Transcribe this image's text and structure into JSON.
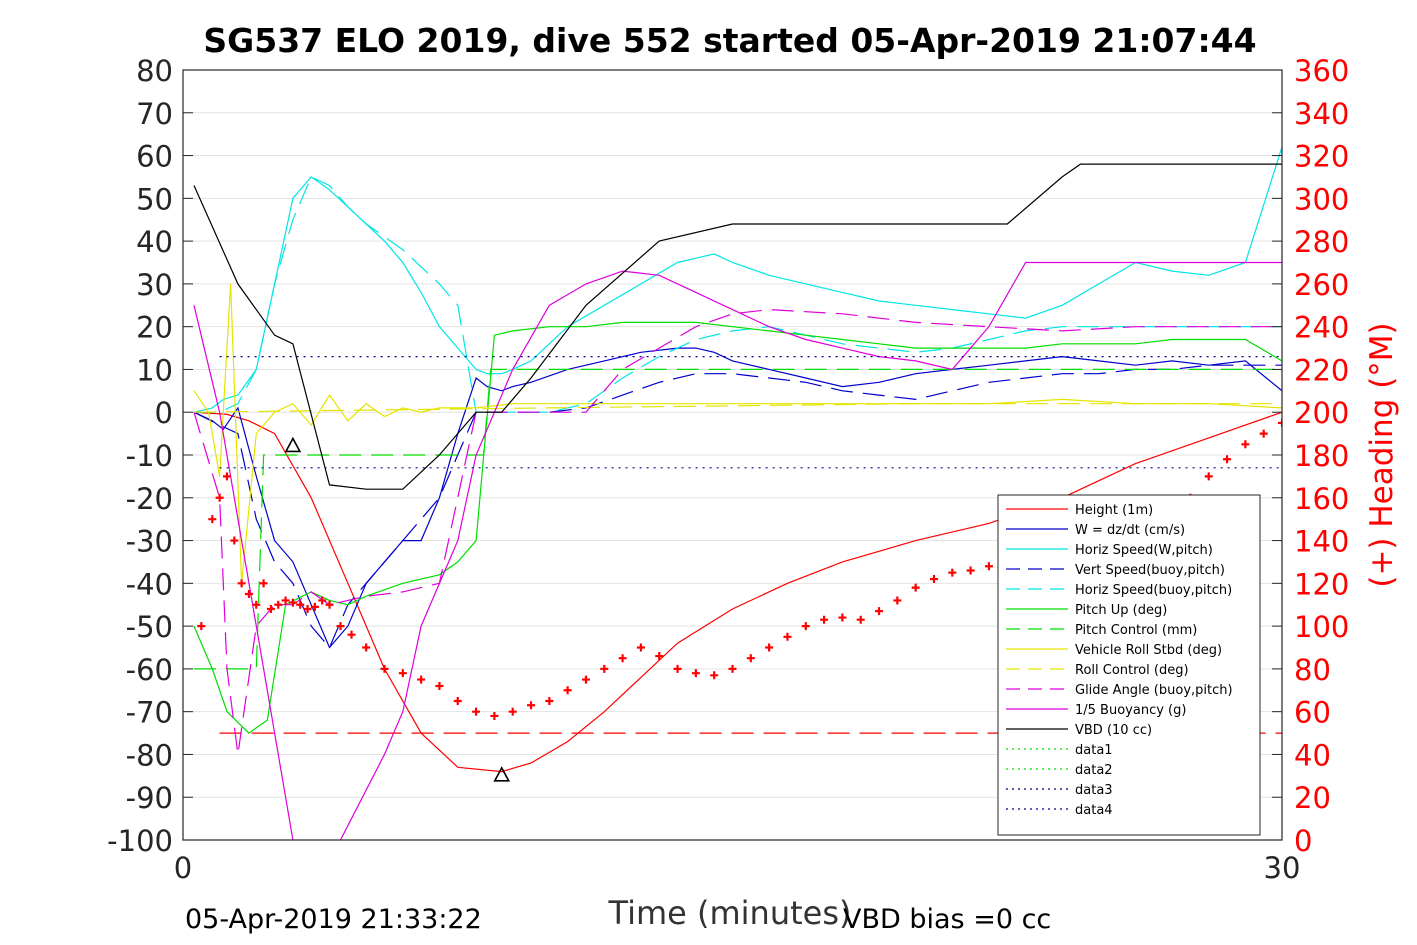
{
  "chart_data": {
    "type": "line",
    "title": "SG537 ELO 2019, dive 552 started 05-Apr-2019 21:07:44",
    "xlabel": "Time (minutes)",
    "ylabel": "",
    "ylabel_right": "(+) Heading (°M)",
    "xlim": [
      0,
      30
    ],
    "ylim": [
      -100,
      80
    ],
    "ylim_right": [
      0,
      360
    ],
    "x_ticks": [
      "0",
      "30"
    ],
    "y_ticks": [
      "80",
      "70",
      "60",
      "50",
      "40",
      "30",
      "20",
      "10",
      "0",
      "-10",
      "-20",
      "-30",
      "-40",
      "-50",
      "-60",
      "-70",
      "-80",
      "-90",
      "-100"
    ],
    "y_right_ticks": [
      "360",
      "340",
      "320",
      "300",
      "280",
      "260",
      "240",
      "220",
      "200",
      "180",
      "160",
      "140",
      "120",
      "100",
      "80",
      "60",
      "40",
      "20",
      "0"
    ],
    "footer_left": "05-Apr-2019 21:33:22",
    "footer_right": "VBD bias =0 cc",
    "grid": true,
    "legend_position": "lower-right",
    "series": [
      {
        "name": "Height (1m)",
        "color": "#ff0000",
        "style": "solid",
        "x": [
          0.3,
          1.2,
          1.8,
          2.5,
          3.5,
          4.5,
          5.5,
          6.5,
          7.5,
          8.7,
          9.5,
          10.5,
          11.5,
          12.5,
          13.5,
          15.0,
          16.5,
          18.0,
          20.0,
          22.0,
          24.0,
          26.0,
          28.0,
          30.0
        ],
        "y": [
          0,
          -0.5,
          -2,
          -5,
          -20,
          -40,
          -60,
          -75,
          -83,
          -84,
          -82,
          -77,
          -70,
          -62,
          -54,
          -46,
          -40,
          -35,
          -30,
          -26,
          -20,
          -12,
          -6,
          0
        ]
      },
      {
        "name": "W = dz/dt (cm/s)",
        "color": "#0000cc",
        "style": "solid",
        "x": [
          0.3,
          0.8,
          1.1,
          1.5,
          2.0,
          2.5,
          3.0,
          3.5,
          4.0,
          4.5,
          5.0,
          5.5,
          6.0,
          6.5,
          7.0,
          7.5,
          8.0,
          8.3,
          8.7,
          9.0,
          9.5,
          10.5,
          11.5,
          12.5,
          13.5,
          14.0,
          14.5,
          15.0,
          16.0,
          17.0,
          18.0,
          19.0,
          20.0,
          21.0,
          22.0,
          23.0,
          24.0,
          25.0,
          26.0,
          27.0,
          28.0,
          29.0,
          30.0
        ],
        "y": [
          0,
          -2,
          -4,
          1,
          -15,
          -30,
          -35,
          -45,
          -55,
          -50,
          -40,
          -35,
          -30,
          -30,
          -20,
          -5,
          8,
          6,
          5,
          6,
          7,
          10,
          12,
          14,
          15,
          15,
          14,
          12,
          10,
          8,
          6,
          7,
          9,
          10,
          11,
          12,
          13,
          12,
          11,
          12,
          11,
          12,
          5
        ]
      },
      {
        "name": "Horiz Speed(W,pitch)",
        "color": "#00e5e5",
        "style": "solid",
        "x": [
          0.3,
          0.8,
          1.1,
          1.5,
          2.0,
          2.5,
          3.0,
          3.5,
          4.0,
          4.5,
          5.0,
          5.5,
          6.0,
          6.5,
          7.0,
          7.5,
          8.0,
          8.3,
          8.7,
          9.0,
          9.5,
          10.5,
          11.5,
          12.5,
          13.5,
          14.0,
          14.5,
          15.0,
          16.0,
          17.0,
          18.0,
          19.0,
          20.0,
          21.0,
          22.0,
          23.0,
          24.0,
          25.0,
          26.0,
          27.0,
          28.0,
          29.0,
          30.0
        ],
        "y": [
          0,
          1,
          3,
          4,
          10,
          30,
          50,
          55,
          52,
          48,
          44,
          40,
          35,
          28,
          20,
          15,
          10,
          9,
          9,
          10,
          12,
          20,
          25,
          30,
          35,
          36,
          37,
          35,
          32,
          30,
          28,
          26,
          25,
          24,
          23,
          22,
          25,
          30,
          35,
          33,
          32,
          35,
          62
        ]
      },
      {
        "name": "Vert Speed(buoy,pitch)",
        "color": "#0000cc",
        "style": "dashed",
        "x": [
          0.3,
          1.0,
          1.5,
          2.0,
          2.5,
          3.0,
          3.5,
          4.0,
          4.5,
          5.0,
          6.0,
          7.0,
          8.0,
          8.7,
          9.0,
          10.0,
          11.0,
          12.0,
          13.0,
          14.0,
          15.0,
          16.0,
          17.0,
          18.0,
          19.0,
          20.0,
          21.0,
          22.0,
          23.0,
          24.0,
          25.0,
          26.0,
          27.0,
          28.0,
          29.0,
          30.0
        ],
        "y": [
          0,
          -3,
          -5,
          -25,
          -35,
          -40,
          -50,
          -55,
          -45,
          -40,
          -30,
          -20,
          0,
          0,
          0,
          0,
          1,
          4,
          7,
          9,
          9,
          8,
          7,
          5,
          4,
          3,
          5,
          7,
          8,
          9,
          9,
          10,
          10,
          11,
          11,
          11
        ]
      },
      {
        "name": "Horiz Speed(buoy,pitch)",
        "color": "#00e5e5",
        "style": "dashed",
        "x": [
          0.3,
          1.0,
          1.5,
          2.0,
          2.5,
          3.0,
          3.5,
          4.0,
          4.5,
          5.0,
          6.0,
          7.0,
          7.5,
          8.0,
          8.7,
          9.0,
          10.0,
          11.0,
          12.0,
          13.0,
          14.0,
          15.0,
          16.0,
          17.0,
          18.0,
          19.0,
          20.0,
          21.0,
          22.0,
          23.0,
          24.0,
          25.0,
          26.0,
          27.0,
          28.0,
          29.0,
          30.0
        ],
        "y": [
          0,
          0,
          2,
          10,
          30,
          45,
          55,
          53,
          48,
          44,
          38,
          30,
          25,
          0,
          0,
          0,
          0,
          2,
          8,
          13,
          17,
          19,
          20,
          18,
          16,
          15,
          14,
          15,
          17,
          19,
          20,
          20,
          20,
          20,
          20,
          20,
          20
        ]
      },
      {
        "name": "Pitch Up (deg)",
        "color": "#00dd00",
        "style": "solid",
        "x": [
          0.3,
          0.8,
          1.2,
          1.8,
          2.3,
          2.8,
          3.5,
          4.0,
          4.5,
          5.0,
          6.0,
          7.0,
          7.5,
          8.0,
          8.5,
          9.0,
          10.0,
          11.0,
          12.0,
          13.0,
          14.0,
          15.0,
          16.0,
          17.0,
          18.0,
          19.0,
          20.0,
          21.0,
          22.0,
          23.0,
          24.0,
          25.0,
          26.0,
          27.0,
          28.0,
          29.0,
          30.0
        ],
        "y": [
          -50,
          -60,
          -70,
          -75,
          -72,
          -45,
          -42,
          -44,
          -45,
          -43,
          -40,
          -38,
          -35,
          -30,
          18,
          19,
          20,
          20,
          21,
          21,
          21,
          20,
          19,
          18,
          17,
          16,
          15,
          15,
          15,
          15,
          16,
          16,
          16,
          17,
          17,
          17,
          12
        ]
      },
      {
        "name": "Pitch Control (mm)",
        "color": "#00dd00",
        "style": "dashed",
        "x": [
          0.3,
          1.0,
          2.0,
          2.2,
          2.5,
          2.8,
          3.5,
          4.5,
          5.5,
          6.5,
          7.5,
          8.2,
          8.4,
          9.0,
          12.0,
          16.0,
          20.0,
          24.0,
          28.0,
          30.0
        ],
        "y": [
          -60,
          -60,
          -60,
          -10,
          -10,
          -10,
          -10,
          -10,
          -10,
          -10,
          -10,
          -10,
          10,
          10,
          10,
          10,
          10,
          10,
          10,
          10
        ]
      },
      {
        "name": "Vehicle Roll Stbd (deg)",
        "color": "#e5e500",
        "style": "solid",
        "x": [
          0.3,
          0.7,
          1.0,
          1.3,
          1.6,
          2.0,
          2.5,
          3.0,
          3.5,
          4.0,
          4.5,
          5.0,
          5.5,
          6.0,
          6.5,
          7.0,
          8.0,
          9.0,
          10.0,
          12.0,
          14.0,
          16.0,
          18.0,
          20.0,
          22.0,
          24.0,
          26.0,
          28.0,
          30.0
        ],
        "y": [
          5,
          0,
          -15,
          30,
          -40,
          -5,
          0,
          2,
          -3,
          4,
          -2,
          2,
          -1,
          1,
          0,
          1,
          1,
          2,
          2,
          2,
          2,
          2,
          2,
          2,
          2,
          3,
          2,
          2,
          1
        ]
      },
      {
        "name": "Roll Control (deg)",
        "color": "#e5e500",
        "style": "dashed",
        "x": [
          0.3,
          5.0,
          10.0,
          15.0,
          20.0,
          25.0,
          30.0
        ],
        "y": [
          0,
          0.5,
          1,
          1.5,
          2,
          2,
          2
        ]
      },
      {
        "name": "Glide Angle (buoy,pitch)",
        "color": "#dd00dd",
        "style": "dashed",
        "x": [
          0.3,
          1.0,
          1.2,
          1.5,
          2.0,
          2.5,
          3.0,
          3.5,
          4.0,
          4.5,
          5.0,
          6.0,
          7.0,
          8.0,
          8.7,
          9.0,
          11.0,
          12.0,
          13.0,
          14.0,
          15.0,
          16.0,
          18.0,
          20.0,
          22.0,
          24.0,
          26.0,
          28.0,
          30.0
        ],
        "y": [
          0,
          -20,
          -60,
          -80,
          -50,
          -45,
          -45,
          -42,
          -45,
          -44,
          -43,
          -42,
          -40,
          0,
          0,
          0,
          0,
          10,
          15,
          20,
          23,
          24,
          23,
          21,
          20,
          19,
          20,
          20,
          20
        ]
      },
      {
        "name": "1/5 Buoyancy (g)",
        "color": "#dd00dd",
        "style": "solid",
        "x": [
          0.3,
          1.0,
          2.0,
          2.8,
          3.2,
          3.8,
          4.3,
          5.5,
          6.0,
          6.5,
          7.5,
          8.0,
          9.0,
          10.0,
          11.0,
          12.0,
          13.0,
          14.0,
          15.0,
          16.0,
          17.0,
          18.0,
          19.0,
          20.0,
          21.0,
          22.0,
          23.0,
          24.0,
          25.0,
          26.0,
          27.0,
          28.0,
          29.0,
          30.0
        ],
        "y": [
          25,
          0,
          -50,
          -90,
          -110,
          -120,
          -100,
          -80,
          -70,
          -50,
          -30,
          -10,
          10,
          25,
          30,
          33,
          32,
          28,
          24,
          20,
          17,
          15,
          13,
          12,
          10,
          20,
          35,
          35,
          35,
          35,
          35,
          35,
          35,
          35
        ]
      },
      {
        "name": "VBD (10 cc)",
        "color": "#000000",
        "style": "solid",
        "x": [
          0.3,
          1.5,
          2.5,
          3.0,
          4.0,
          5.0,
          6.0,
          7.0,
          8.0,
          8.7,
          9.5,
          11.0,
          13.0,
          15.0,
          18.0,
          21.0,
          22.5,
          24.0,
          24.5,
          26.0,
          28.0,
          30.0
        ],
        "y": [
          53,
          30,
          18,
          16,
          -17,
          -18,
          -18,
          -10,
          0,
          0,
          8,
          25,
          40,
          44,
          44,
          44,
          44,
          55,
          58,
          58,
          58,
          58
        ]
      },
      {
        "name": "data1",
        "color": "#00dd00",
        "style": "dotted",
        "x": [],
        "y": []
      },
      {
        "name": "data2",
        "color": "#00dd00",
        "style": "dotted",
        "x": [],
        "y": []
      },
      {
        "name": "data3",
        "color": "#000088",
        "style": "dotted",
        "x": [
          1.0,
          30.0
        ],
        "y": [
          13,
          13
        ]
      },
      {
        "name": "data4",
        "color": "#000088",
        "style": "dotted",
        "x": [
          1.0,
          30.0
        ],
        "y": [
          -13,
          -13
        ]
      }
    ],
    "extra_lines": [
      {
        "color": "#ff0000",
        "style": "dashed",
        "x": [
          1.0,
          30.0
        ],
        "y": [
          -75,
          -75
        ]
      }
    ],
    "heading": {
      "color": "#ff0000",
      "x": [
        0.5,
        0.8,
        1.0,
        1.2,
        1.4,
        1.6,
        1.8,
        2.0,
        2.2,
        2.4,
        2.6,
        2.8,
        3.0,
        3.2,
        3.4,
        3.6,
        3.8,
        4.0,
        4.3,
        4.6,
        5.0,
        5.5,
        6.0,
        6.5,
        7.0,
        7.5,
        8.0,
        8.5,
        9.0,
        9.5,
        10.0,
        10.5,
        11.0,
        11.5,
        12.0,
        12.5,
        13.0,
        13.5,
        14.0,
        14.5,
        15.0,
        15.5,
        16.0,
        16.5,
        17.0,
        17.5,
        18.0,
        18.5,
        19.0,
        19.5,
        20.0,
        20.5,
        21.0,
        21.5,
        22.0,
        22.5,
        23.0,
        23.5,
        24.0,
        24.5,
        25.0,
        25.5,
        26.0,
        26.5,
        27.0,
        27.5,
        28.0,
        28.5,
        29.0,
        29.5,
        30.0
      ],
      "y": [
        100,
        150,
        160,
        170,
        140,
        120,
        115,
        110,
        120,
        108,
        110,
        112,
        111,
        110,
        108,
        109,
        112,
        110,
        100,
        96,
        90,
        80,
        78,
        75,
        72,
        65,
        60,
        58,
        60,
        63,
        65,
        70,
        75,
        80,
        85,
        90,
        86,
        80,
        78,
        77,
        80,
        85,
        90,
        95,
        100,
        103,
        104,
        103,
        107,
        112,
        118,
        122,
        125,
        126,
        128,
        127,
        129,
        130,
        130,
        125,
        122,
        135,
        142,
        148,
        155,
        160,
        170,
        178,
        185,
        190,
        195
      ]
    },
    "markers": [
      {
        "shape": "triangle",
        "x": 3.0,
        "y": -8
      },
      {
        "shape": "triangle",
        "x": 8.7,
        "y": -85
      }
    ]
  }
}
